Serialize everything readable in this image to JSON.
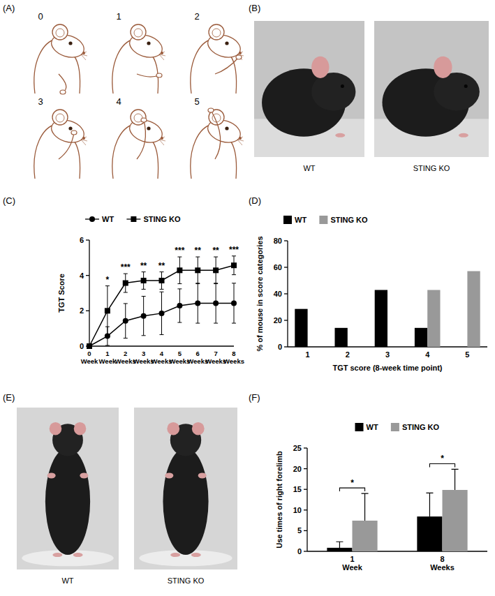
{
  "panel_labels": [
    "(A)",
    "(B)",
    "(C)",
    "(D)",
    "(E)",
    "(F)"
  ],
  "panel_a": {
    "scores": [
      0,
      1,
      2,
      3,
      4,
      5
    ]
  },
  "panel_b": {
    "captions": [
      "WT",
      "STING KO"
    ]
  },
  "panel_e": {
    "captions": [
      "WT",
      "STING KO"
    ]
  },
  "chart_data": [
    {
      "type": "line",
      "ylabel": "TGT Score",
      "categories": [
        "0 Week",
        "1 Week",
        "2 Weeks",
        "3 Weeks",
        "4 Weeks",
        "5 Weeks",
        "6 Weeks",
        "7 Weeks",
        "8 Weeks"
      ],
      "ylim": [
        0,
        6
      ],
      "yticks": [
        0,
        2,
        4,
        6
      ],
      "legend": "top-left",
      "series": [
        {
          "name": "WT",
          "color": "#000000",
          "marker": "circle",
          "values": [
            0,
            0.57,
            1.43,
            1.71,
            1.86,
            2.29,
            2.43,
            2.43,
            2.43
          ],
          "errors": [
            0,
            0.53,
            0.98,
            1.11,
            1.21,
            0.95,
            1.13,
            1.13,
            1.13
          ]
        },
        {
          "name": "STING KO",
          "color": "#000000",
          "marker": "square",
          "values": [
            0,
            2.0,
            3.57,
            3.71,
            3.71,
            4.29,
            4.29,
            4.29,
            4.57
          ],
          "errors": [
            0,
            1.41,
            0.53,
            0.49,
            0.49,
            0.76,
            0.76,
            0.76,
            0.53
          ]
        }
      ],
      "significance": [
        null,
        "*",
        "***",
        "**",
        "**",
        "***",
        "**",
        "**",
        "***"
      ]
    },
    {
      "type": "bar",
      "xlabel": "TGT score (8-week time point)",
      "ylabel": "% of mouse in score categories",
      "categories": [
        "1",
        "2",
        "3",
        "4",
        "5"
      ],
      "ylim": [
        0,
        80
      ],
      "yticks": [
        0,
        20,
        40,
        60,
        80
      ],
      "legend": "top-left",
      "series": [
        {
          "name": "WT",
          "color": "#000000",
          "values": [
            28.6,
            14.3,
            42.9,
            14.3,
            0
          ]
        },
        {
          "name": "STING KO",
          "color": "#999999",
          "values": [
            0,
            0,
            0,
            42.9,
            57.1
          ]
        }
      ]
    },
    {
      "type": "bar",
      "ylabel": "Use times of right forelimb",
      "categories": [
        "1 Week",
        "8 Weeks"
      ],
      "ylim": [
        0,
        25
      ],
      "yticks": [
        0,
        5,
        10,
        15,
        20,
        25
      ],
      "legend": "top",
      "series": [
        {
          "name": "WT",
          "color": "#000000",
          "values": [
            0.86,
            8.43
          ],
          "errors": [
            1.46,
            5.71
          ]
        },
        {
          "name": "STING KO",
          "color": "#999999",
          "values": [
            7.43,
            14.86
          ],
          "errors": [
            6.57,
            5.0
          ]
        }
      ],
      "significance": [
        "*",
        "*"
      ]
    }
  ]
}
